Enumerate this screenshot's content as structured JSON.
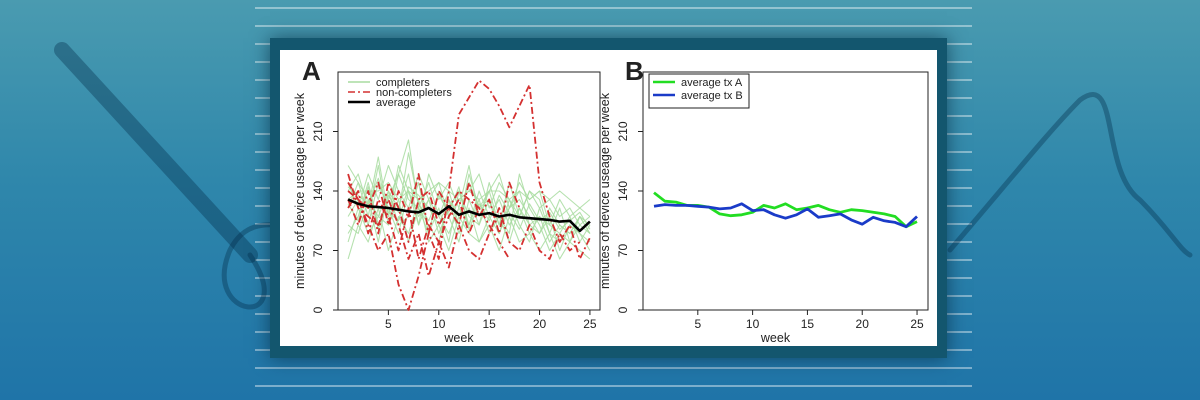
{
  "chart_data": [
    {
      "panel": "A",
      "type": "line",
      "xlabel": "week",
      "ylabel": "minutes of device useage per week",
      "xlim": [
        0,
        26
      ],
      "ylim": [
        0,
        280
      ],
      "xticks": [
        5,
        10,
        15,
        20,
        25
      ],
      "yticks": [
        0,
        70,
        140,
        210
      ],
      "legend": {
        "placement": "top-left",
        "entries": [
          {
            "label": "completers",
            "color": "#a8dca0",
            "style": "solid"
          },
          {
            "label": "non-completers",
            "color": "#d43030",
            "style": "dashdot"
          },
          {
            "label": "average",
            "color": "#000000",
            "style": "solid"
          }
        ]
      },
      "series": [
        {
          "group": "completers",
          "values": [
            120,
            150,
            110,
            170,
            100,
            160,
            130,
            120,
            150,
            110,
            140,
            100,
            160,
            120,
            130,
            100,
            150,
            110,
            140,
            130,
            90,
            120,
            80,
            110,
            100
          ]
        },
        {
          "group": "completers",
          "values": [
            100,
            90,
            130,
            80,
            140,
            100,
            110,
            150,
            90,
            120,
            80,
            140,
            100,
            130,
            90,
            110,
            80,
            120,
            100,
            90,
            110,
            70,
            100,
            90,
            80
          ]
        },
        {
          "group": "completers",
          "values": [
            140,
            160,
            120,
            180,
            110,
            170,
            140,
            100,
            160,
            130,
            150,
            120,
            170,
            110,
            140,
            160,
            120,
            150,
            130,
            140,
            100,
            130,
            110,
            120,
            110
          ]
        },
        {
          "group": "completers",
          "values": [
            60,
            100,
            80,
            120,
            70,
            110,
            90,
            130,
            80,
            100,
            70,
            110,
            90,
            80,
            100,
            70,
            110,
            80,
            90,
            70,
            90,
            60,
            80,
            70,
            60
          ]
        },
        {
          "group": "completers",
          "values": [
            150,
            120,
            160,
            130,
            170,
            140,
            120,
            160,
            130,
            150,
            110,
            130,
            140,
            160,
            120,
            150,
            130,
            110,
            140,
            120,
            130,
            110,
            120,
            100,
            110
          ]
        },
        {
          "group": "completers",
          "values": [
            110,
            130,
            100,
            150,
            120,
            90,
            140,
            110,
            130,
            90,
            120,
            140,
            110,
            100,
            130,
            90,
            120,
            140,
            100,
            110,
            80,
            100,
            90,
            110,
            90
          ]
        },
        {
          "group": "completers",
          "values": [
            130,
            140,
            140,
            140,
            150,
            130,
            140,
            130,
            140,
            150,
            140,
            130,
            140,
            130,
            140,
            140,
            130,
            140,
            130,
            140,
            130,
            140,
            130,
            120,
            130
          ]
        },
        {
          "group": "completers",
          "values": [
            90,
            110,
            150,
            100,
            130,
            160,
            200,
            120,
            90,
            140,
            110,
            80,
            130,
            100,
            150,
            110,
            90,
            160,
            120,
            100,
            70,
            90,
            80,
            100,
            90
          ]
        },
        {
          "group": "completers",
          "values": [
            170,
            150,
            130,
            110,
            140,
            120,
            160,
            100,
            130,
            110,
            90,
            120,
            100,
            140,
            110,
            130,
            100,
            120,
            90,
            110,
            100,
            90,
            110,
            80,
            100
          ]
        },
        {
          "group": "completers",
          "values": [
            80,
            120,
            90,
            110,
            100,
            130,
            80,
            120,
            100,
            80,
            130,
            90,
            120,
            80,
            110,
            90,
            130,
            100,
            80,
            120,
            90,
            80,
            100,
            90,
            70
          ]
        },
        {
          "group": "completers",
          "values": [
            125,
            105,
            145,
            95,
            135,
            115,
            185,
            125,
            105,
            135,
            115,
            145,
            95,
            125,
            105,
            135,
            115,
            95,
            125,
            105,
            115,
            95,
            105,
            115,
            95
          ]
        },
        {
          "group": "completers",
          "values": [
            145,
            135,
            125,
            155,
            115,
            105,
            145,
            135,
            120,
            100,
            130,
            110,
            150,
            120,
            140,
            100,
            120,
            130,
            110,
            90,
            120,
            100,
            90,
            110,
            90
          ]
        },
        {
          "group": "non-completers",
          "values": [
            150,
            130,
            120,
            150,
            100,
            140,
            110,
            160,
            90,
            140,
            120,
            100,
            150,
            110,
            130,
            90,
            150,
            120
          ]
        },
        {
          "group": "non-completers",
          "values": [
            130,
            100,
            140,
            90,
            150,
            120,
            80,
            130,
            140,
            100,
            120,
            140,
            130,
            120
          ]
        },
        {
          "group": "non-completers",
          "values": [
            140,
            130,
            100,
            70,
            90,
            30,
            0,
            40,
            90,
            60,
            140,
            230,
            250,
            270,
            260,
            240,
            215,
            240,
            265,
            150,
            110,
            80,
            100,
            60,
            85
          ]
        },
        {
          "group": "non-completers",
          "values": [
            120,
            140,
            90,
            130,
            110,
            70,
            120,
            60,
            100,
            80,
            110,
            130,
            90,
            120,
            100,
            80,
            60
          ]
        },
        {
          "group": "non-completers",
          "values": [
            160,
            120,
            110,
            100,
            130,
            100,
            60,
            90,
            40,
            80,
            50,
            100,
            70,
            60,
            90,
            120,
            80,
            70,
            100,
            70,
            60,
            90,
            70,
            80
          ]
        }
      ],
      "average": [
        130,
        125,
        122,
        121,
        120,
        118,
        116,
        115,
        120,
        113,
        122,
        112,
        116,
        112,
        114,
        110,
        112,
        109,
        108,
        107,
        106,
        104,
        105,
        93,
        104
      ]
    },
    {
      "panel": "B",
      "type": "line",
      "xlabel": "week",
      "ylabel": "minutes of device useage per week",
      "xlim": [
        0,
        26
      ],
      "ylim": [
        0,
        280
      ],
      "xticks": [
        5,
        10,
        15,
        20,
        25
      ],
      "yticks": [
        0,
        70,
        140,
        210
      ],
      "legend": {
        "placement": "top-left",
        "entries": [
          {
            "label": "average tx A",
            "color": "#22dd22",
            "style": "solid"
          },
          {
            "label": "average tx B",
            "color": "#1a3bc8",
            "style": "solid"
          }
        ]
      },
      "series": [
        {
          "name": "average tx A",
          "color": "#22dd22",
          "values": [
            138,
            128,
            127,
            123,
            123,
            121,
            113,
            111,
            112,
            115,
            123,
            120,
            125,
            118,
            120,
            123,
            118,
            115,
            118,
            117,
            115,
            113,
            110,
            98,
            104
          ]
        },
        {
          "name": "average tx B",
          "color": "#1a3bc8",
          "values": [
            122,
            124,
            123,
            123,
            122,
            121,
            119,
            120,
            125,
            117,
            118,
            112,
            108,
            112,
            119,
            109,
            111,
            113,
            106,
            101,
            109,
            105,
            103,
            98,
            110
          ]
        }
      ]
    }
  ]
}
